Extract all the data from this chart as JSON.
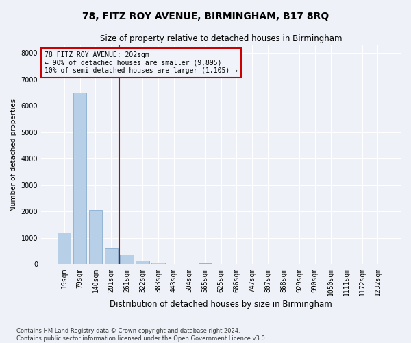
{
  "title1": "78, FITZ ROY AVENUE, BIRMINGHAM, B17 8RQ",
  "title2": "Size of property relative to detached houses in Birmingham",
  "xlabel": "Distribution of detached houses by size in Birmingham",
  "ylabel": "Number of detached properties",
  "footnote1": "Contains HM Land Registry data © Crown copyright and database right 2024.",
  "footnote2": "Contains public sector information licensed under the Open Government Licence v3.0.",
  "categories": [
    "19sqm",
    "79sqm",
    "140sqm",
    "201sqm",
    "261sqm",
    "322sqm",
    "383sqm",
    "443sqm",
    "504sqm",
    "565sqm",
    "625sqm",
    "686sqm",
    "747sqm",
    "807sqm",
    "868sqm",
    "929sqm",
    "990sqm",
    "1050sqm",
    "1111sqm",
    "1172sqm",
    "1232sqm"
  ],
  "values": [
    1200,
    6500,
    2050,
    600,
    380,
    130,
    60,
    0,
    0,
    50,
    0,
    0,
    0,
    0,
    0,
    0,
    0,
    0,
    0,
    0,
    0
  ],
  "bar_color": "#b8cfe8",
  "bar_edge_color": "#8aadd0",
  "vline_position": 3.5,
  "vline_color": "#cc0000",
  "annotation_text": "78 FITZ ROY AVENUE: 202sqm\n← 90% of detached houses are smaller (9,895)\n10% of semi-detached houses are larger (1,105) →",
  "annotation_box_color": "#cc0000",
  "annotation_box_fill": "#f0f4fa",
  "ylim": [
    0,
    8300
  ],
  "yticks": [
    0,
    1000,
    2000,
    3000,
    4000,
    5000,
    6000,
    7000,
    8000
  ],
  "bg_color": "#eef2f8",
  "grid_color": "#ffffff",
  "title1_fontsize": 10,
  "title2_fontsize": 8.5,
  "xlabel_fontsize": 8.5,
  "ylabel_fontsize": 7.5,
  "tick_fontsize": 7,
  "annot_fontsize": 7,
  "footnote_fontsize": 6
}
